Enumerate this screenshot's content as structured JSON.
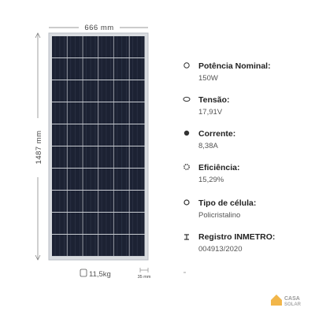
{
  "dimensions": {
    "width": "666 mm",
    "height": "1487 mm",
    "weight": "11,5kg",
    "thickness": "35 mm"
  },
  "specs": [
    {
      "label": "Potência Nominal:",
      "value": "150W"
    },
    {
      "label": "Tensão:",
      "value": "17,91V"
    },
    {
      "label": "Corrente:",
      "value": "8,38A"
    },
    {
      "label": "Eficiência:",
      "value": "15,29%"
    },
    {
      "label": "Tipo de célula:",
      "value": "Policristalino"
    },
    {
      "label": "Registro INMETRO:",
      "value": "004913/2020"
    }
  ],
  "logo": {
    "line1": "CASA",
    "line2": "SOLAR"
  }
}
